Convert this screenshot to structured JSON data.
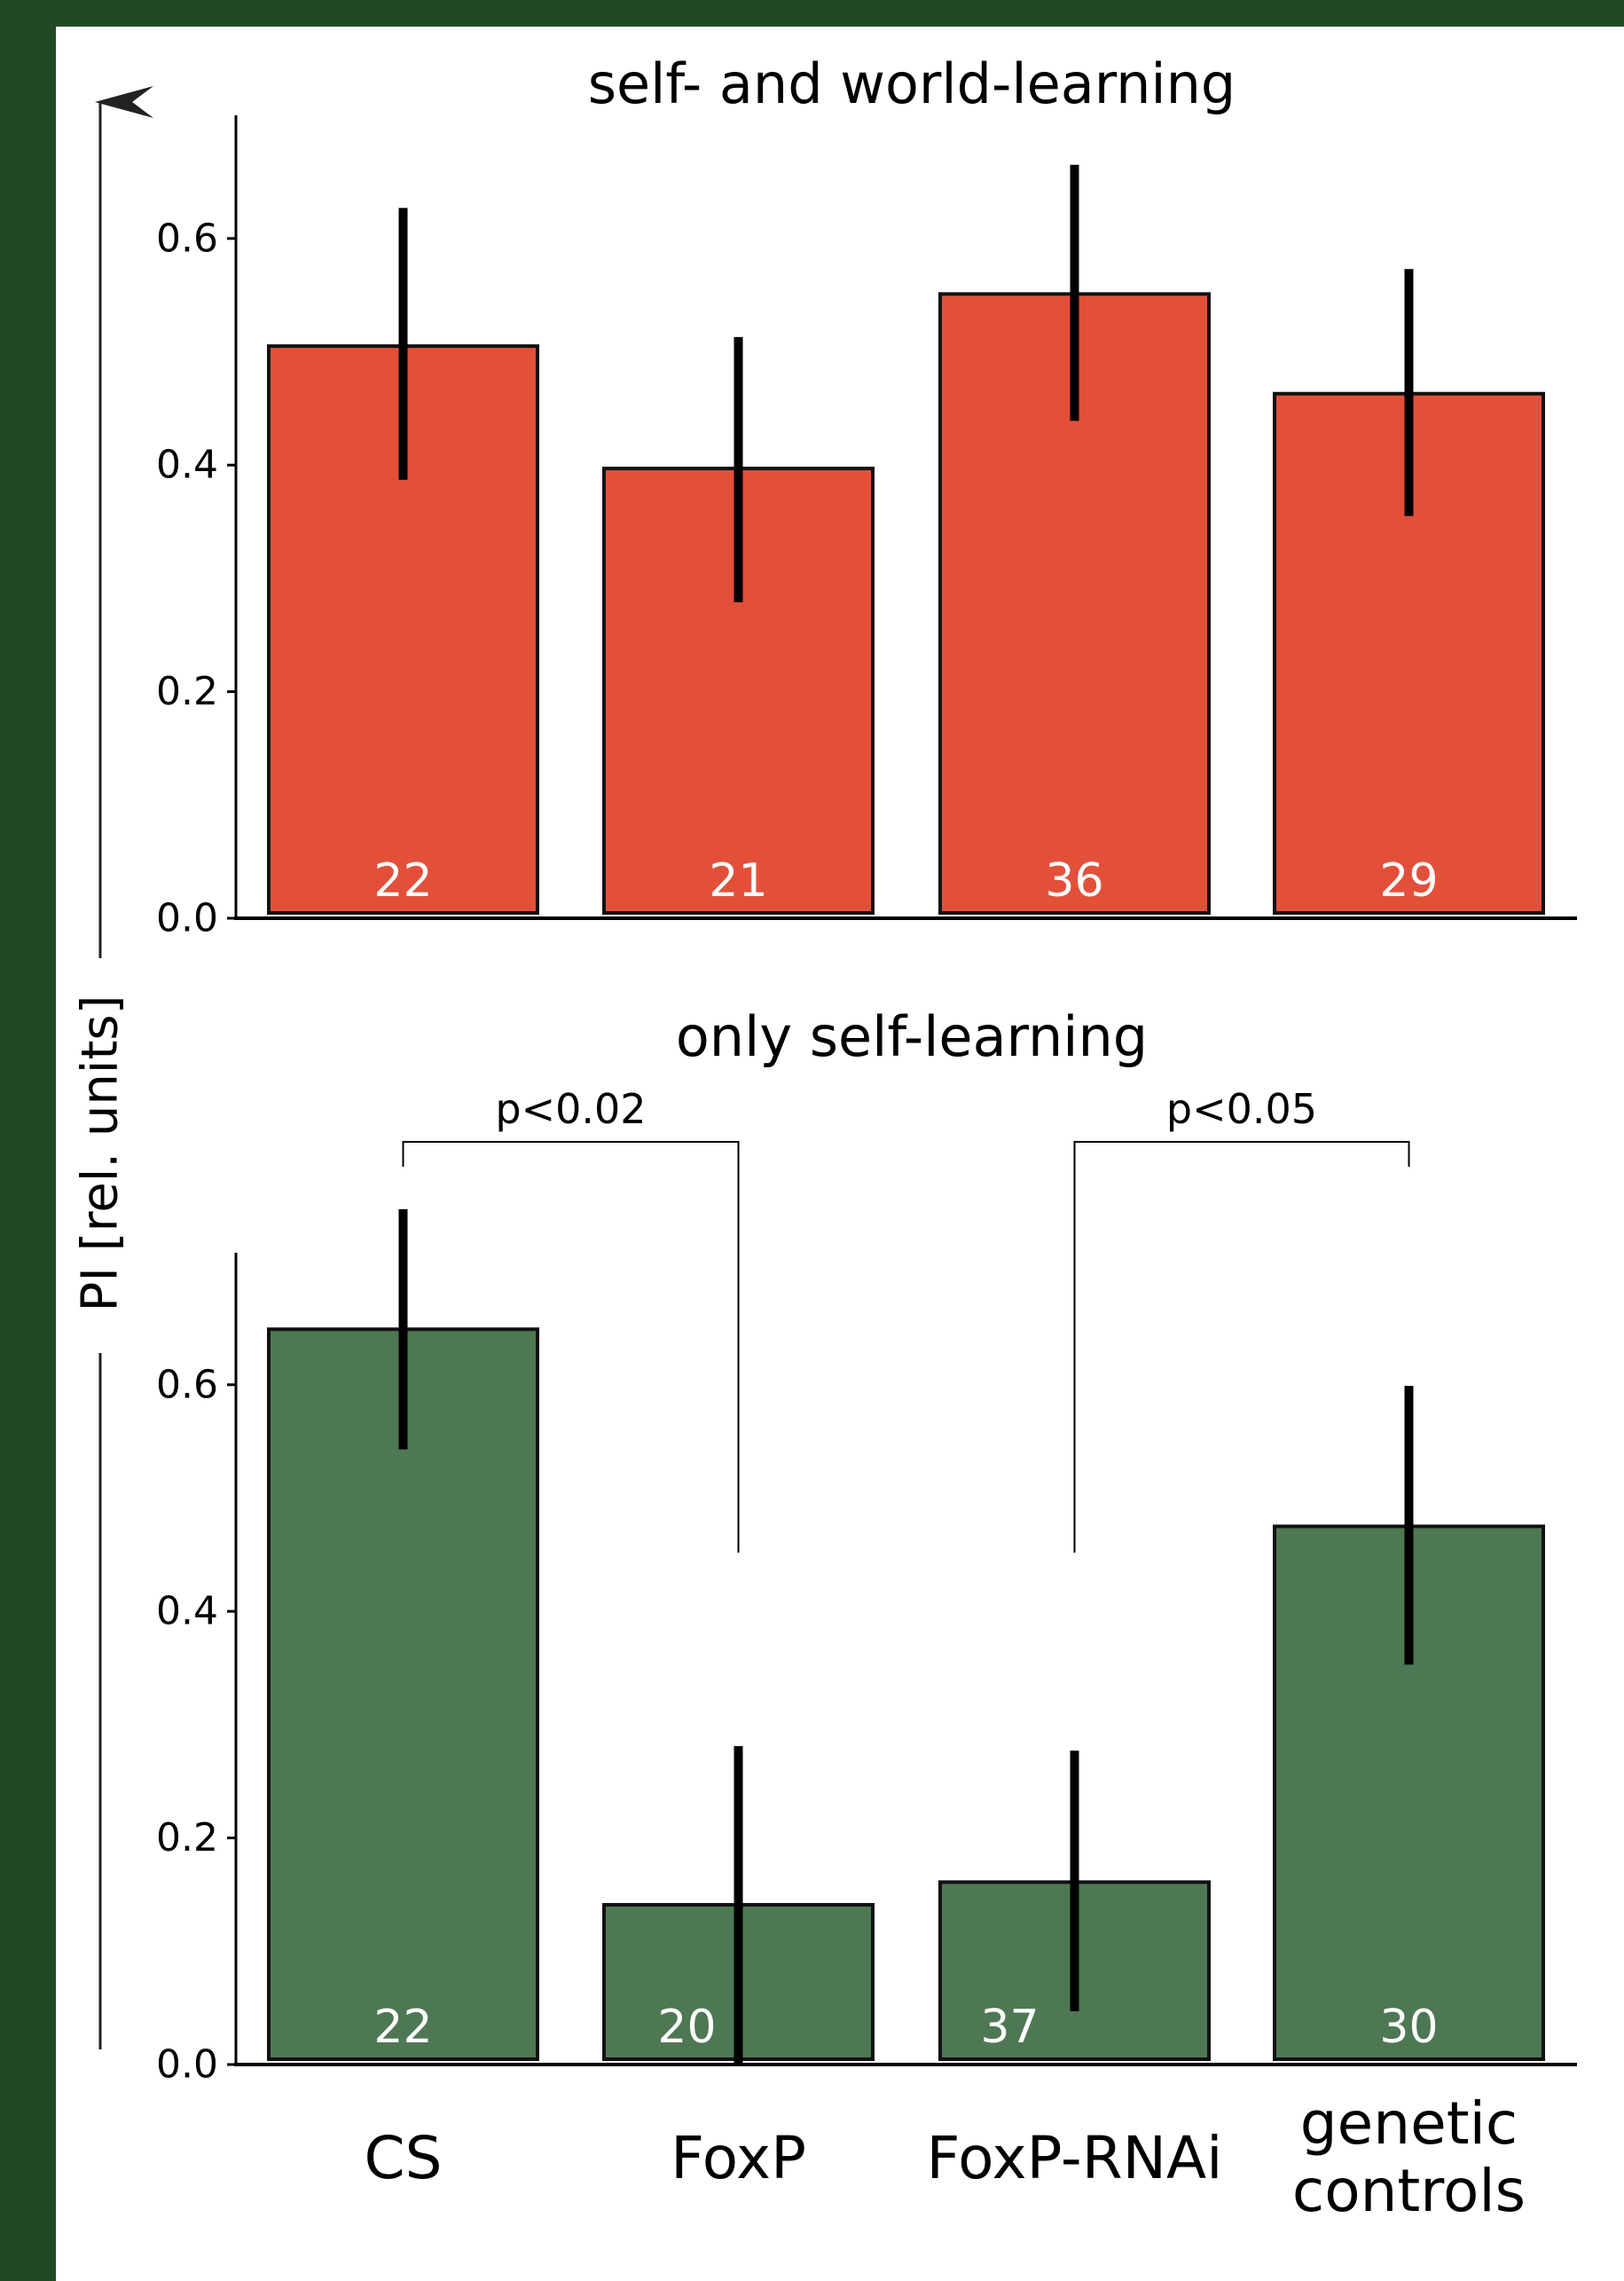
{
  "colors": {
    "frame": "#214a23",
    "panel": "#ffffff",
    "bar_top": "#e3503a",
    "bar_bottom": "#4e7854",
    "axis": "#000000",
    "count_text": "#ffffff"
  },
  "y_axis_label": "PI [rel. units]",
  "chart_data": [
    {
      "type": "bar",
      "title": "self- and world-learning",
      "categories": [
        "CS",
        "FoxP",
        "FoxP-RNAi",
        "genetic controls"
      ],
      "values": [
        0.505,
        0.397,
        0.551,
        0.463
      ],
      "error_low": [
        0.387,
        0.279,
        0.439,
        0.355
      ],
      "error_high": [
        0.627,
        0.513,
        0.665,
        0.573
      ],
      "bar_labels": [
        "22",
        "21",
        "36",
        "29"
      ],
      "ylim": [
        0,
        0.71
      ],
      "yticks": [
        0.0,
        0.2,
        0.4,
        0.6
      ],
      "ytick_labels": [
        "0.0",
        "0.2",
        "0.4",
        "0.6"
      ],
      "ylabel": "PI [rel. units]",
      "xlabel": "",
      "grid": false
    },
    {
      "type": "bar",
      "title": "only self-learning",
      "categories": [
        "CS",
        "FoxP",
        "FoxP-RNAi",
        "genetic controls"
      ],
      "values": [
        0.649,
        0.141,
        0.161,
        0.475
      ],
      "error_low": [
        0.543,
        0.0,
        0.047,
        0.353
      ],
      "error_high": [
        0.755,
        0.281,
        0.277,
        0.599
      ],
      "bar_labels": [
        "22",
        "20",
        "37",
        "30"
      ],
      "ylim": [
        0,
        0.71
      ],
      "yticks": [
        0.0,
        0.2,
        0.4,
        0.6
      ],
      "ytick_labels": [
        "0.0",
        "0.2",
        "0.4",
        "0.6"
      ],
      "ylabel": "PI [rel. units]",
      "xlabel": "",
      "grid": false,
      "significance": [
        {
          "from": 0,
          "to": 1,
          "label": "p<0.02"
        },
        {
          "from": 2,
          "to": 3,
          "label": "p<0.05"
        }
      ]
    }
  ],
  "x_tick_labels": [
    {
      "lines": [
        "CS"
      ]
    },
    {
      "lines": [
        "FoxP"
      ]
    },
    {
      "lines": [
        "FoxP-RNAi"
      ]
    },
    {
      "lines": [
        "genetic",
        "controls"
      ]
    }
  ]
}
